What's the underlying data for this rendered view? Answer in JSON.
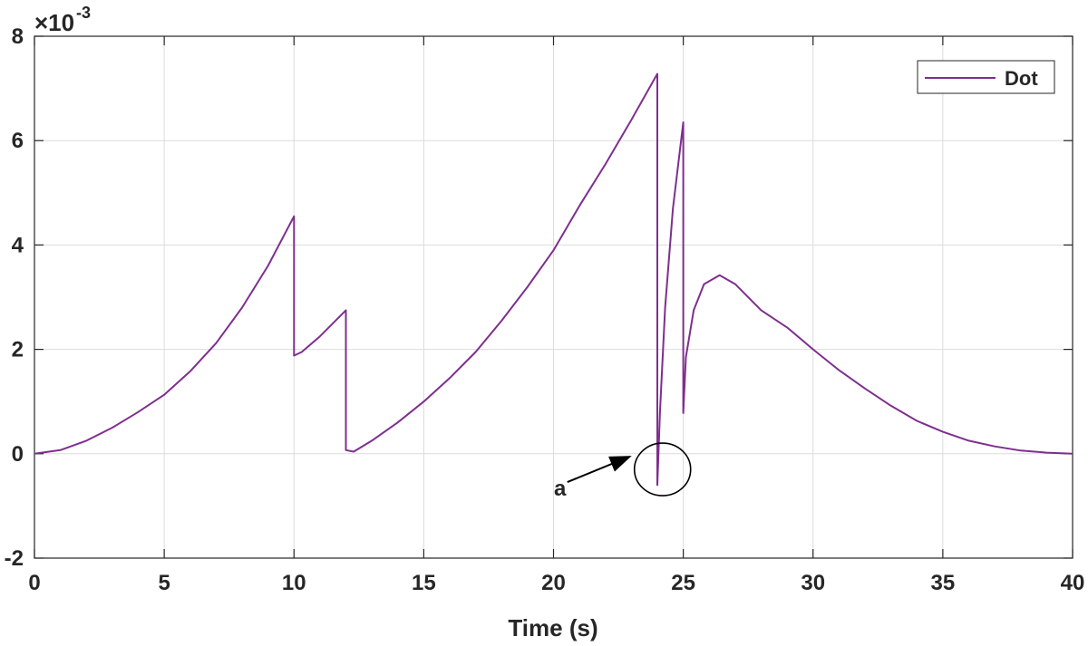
{
  "chart_data": {
    "type": "line",
    "title": "",
    "xlabel": "Time (s)",
    "ylabel": "",
    "xlim": [
      0,
      40
    ],
    "ylim": [
      -2,
      8
    ],
    "y_exponent_label": "×10",
    "y_exponent_power": "-3",
    "xticks": [
      0,
      5,
      10,
      15,
      20,
      25,
      30,
      35,
      40
    ],
    "yticks": [
      -2,
      0,
      2,
      4,
      6,
      8
    ],
    "grid": true,
    "legend_position": "top-right",
    "series": [
      {
        "name": "Dot",
        "color": "#7E2F8E",
        "x": [
          0,
          1,
          2,
          3,
          4,
          5,
          6,
          7,
          8,
          9,
          10,
          10,
          10.3,
          11,
          12,
          12,
          12.3,
          13,
          14,
          15,
          16,
          17,
          18,
          19,
          20,
          21,
          22,
          23,
          24,
          24,
          24,
          24.1,
          24.3,
          24.6,
          25,
          25,
          25.1,
          25.4,
          25.8,
          26.4,
          27,
          28,
          29,
          30,
          31,
          32,
          33,
          34,
          35,
          36,
          37,
          38,
          39,
          40
        ],
        "y": [
          0,
          0.07,
          0.25,
          0.5,
          0.8,
          1.13,
          1.58,
          2.12,
          2.8,
          3.6,
          4.55,
          1.88,
          1.95,
          2.25,
          2.75,
          0.07,
          0.04,
          0.25,
          0.6,
          1.0,
          1.45,
          1.95,
          2.55,
          3.2,
          3.9,
          4.75,
          5.55,
          6.4,
          7.28,
          0.2,
          -0.6,
          0.8,
          2.8,
          4.7,
          6.35,
          0.78,
          1.85,
          2.75,
          3.25,
          3.42,
          3.25,
          2.75,
          2.42,
          2.0,
          1.6,
          1.25,
          0.92,
          0.63,
          0.42,
          0.25,
          0.14,
          0.06,
          0.02,
          0
        ]
      }
    ],
    "annotations": [
      {
        "text": "a",
        "x": 24.2,
        "y": -0.3
      }
    ]
  }
}
